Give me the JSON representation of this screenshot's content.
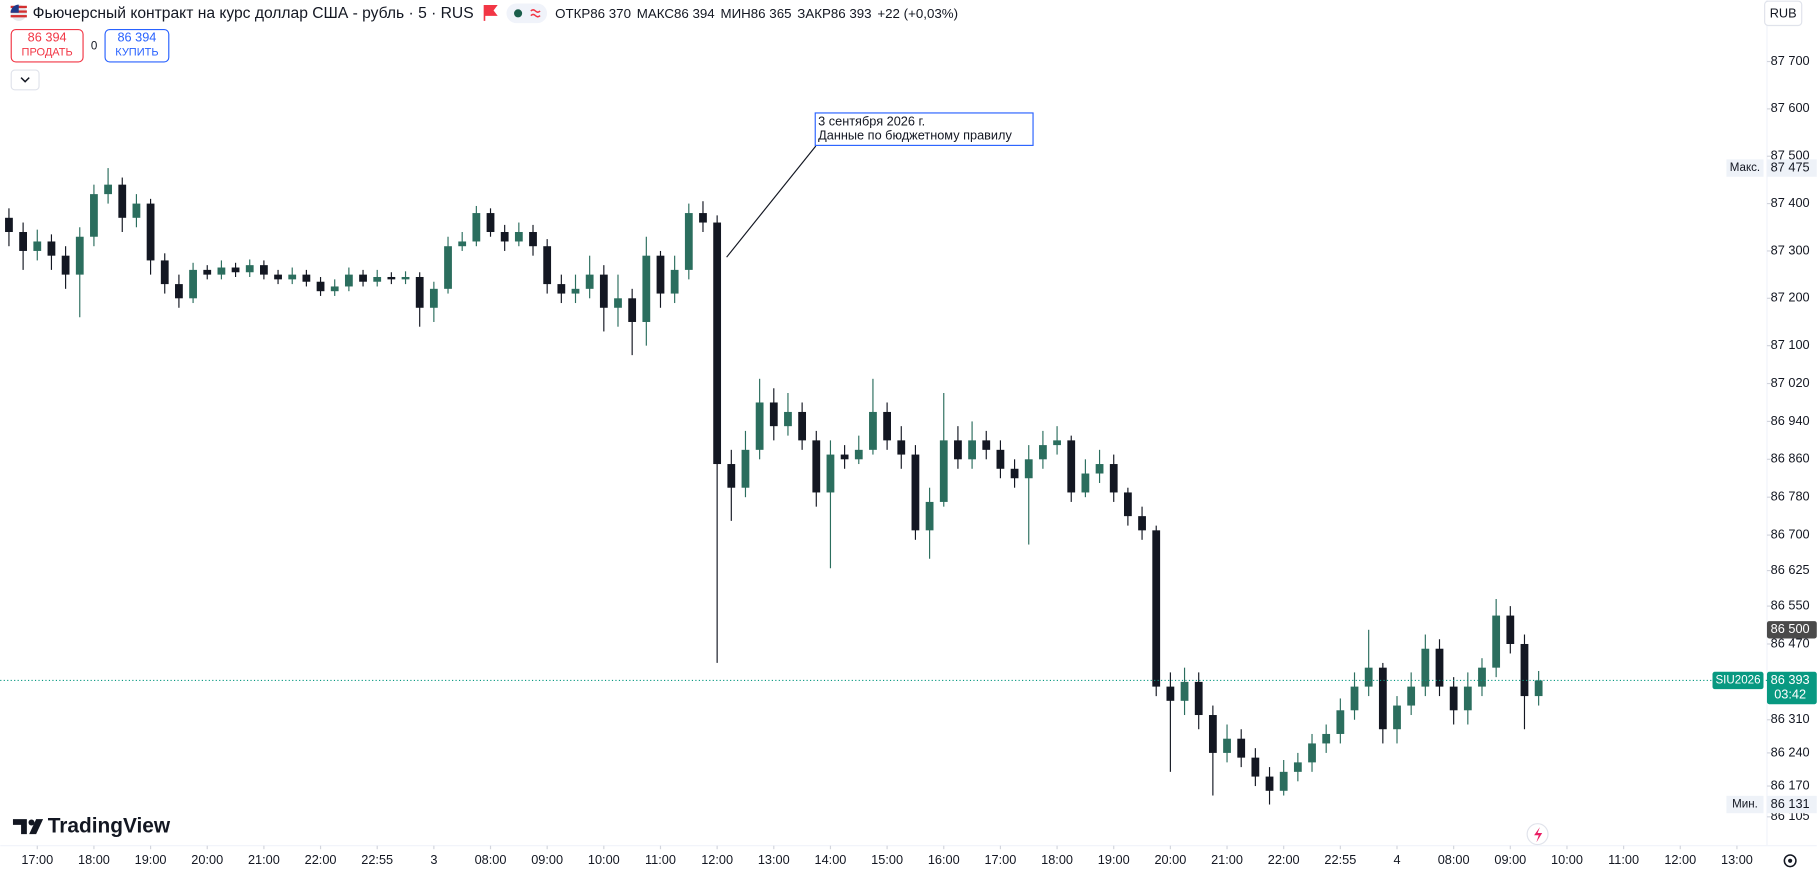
{
  "header": {
    "title": "Фьючерсный контракт на курс доллар США - рубль · 5 · RUS",
    "open_label": "ОТКР",
    "open": "86 370",
    "high_label": "МАКС",
    "high": "86 394",
    "low_label": "МИН",
    "low": "86 365",
    "close_label": "ЗАКР",
    "close": "86 393",
    "change": "+22 (+0,03%)",
    "currency": "RUB"
  },
  "trade": {
    "sell_price": "86 394",
    "sell_label": "ПРОДАТЬ",
    "spread": "0",
    "buy_price": "86 394",
    "buy_label": "КУПИТЬ"
  },
  "annotation": {
    "date": "3 сентября 2026 г.",
    "text": "Данные по бюджетному правилу"
  },
  "logo": "TradingView",
  "chart_data": {
    "type": "candlestick",
    "up_color": "#2b6e5e",
    "down_color": "#131722",
    "grid": false,
    "xlim": [
      -0.654,
      30.53
    ],
    "ylim": [
      86044,
      87781
    ],
    "xticks": [
      {
        "value": 0,
        "label": "17:00"
      },
      {
        "value": 1,
        "label": "18:00"
      },
      {
        "value": 2,
        "label": "19:00"
      },
      {
        "value": 3,
        "label": "20:00"
      },
      {
        "value": 4,
        "label": "21:00"
      },
      {
        "value": 5,
        "label": "22:00"
      },
      {
        "value": 6,
        "label": "22:55"
      },
      {
        "value": 7,
        "label": "3"
      },
      {
        "value": 8,
        "label": "08:00"
      },
      {
        "value": 9,
        "label": "09:00"
      },
      {
        "value": 10,
        "label": "10:00"
      },
      {
        "value": 11,
        "label": "11:00"
      },
      {
        "value": 12,
        "label": "12:00"
      },
      {
        "value": 13,
        "label": "13:00"
      },
      {
        "value": 14,
        "label": "14:00"
      },
      {
        "value": 15,
        "label": "15:00"
      },
      {
        "value": 16,
        "label": "16:00"
      },
      {
        "value": 17,
        "label": "17:00"
      },
      {
        "value": 18,
        "label": "18:00"
      },
      {
        "value": 19,
        "label": "19:00"
      },
      {
        "value": 20,
        "label": "20:00"
      },
      {
        "value": 21,
        "label": "21:00"
      },
      {
        "value": 22,
        "label": "22:00"
      },
      {
        "value": 23,
        "label": "22:55"
      },
      {
        "value": 24,
        "label": "4"
      },
      {
        "value": 25,
        "label": "08:00"
      },
      {
        "value": 26,
        "label": "09:00"
      },
      {
        "value": 27,
        "label": "10:00"
      },
      {
        "value": 28,
        "label": "11:00"
      },
      {
        "value": 29,
        "label": "12:00"
      },
      {
        "value": 30,
        "label": "13:00"
      }
    ],
    "yticks": [
      {
        "value": 87700,
        "label": "87 700"
      },
      {
        "value": 87600,
        "label": "87 600"
      },
      {
        "value": 87500,
        "label": "87 500"
      },
      {
        "value": 87400,
        "label": "87 400"
      },
      {
        "value": 87300,
        "label": "87 300"
      },
      {
        "value": 87200,
        "label": "87 200"
      },
      {
        "value": 87100,
        "label": "87 100"
      },
      {
        "value": 87020,
        "label": "87 020"
      },
      {
        "value": 86940,
        "label": "86 940"
      },
      {
        "value": 86860,
        "label": "86 860"
      },
      {
        "value": 86780,
        "label": "86 780"
      },
      {
        "value": 86700,
        "label": "86 700"
      },
      {
        "value": 86625,
        "label": "86 625"
      },
      {
        "value": 86550,
        "label": "86 550"
      },
      {
        "value": 86470,
        "label": "86 470"
      },
      {
        "value": 86310,
        "label": "86 310"
      },
      {
        "value": 86240,
        "label": "86 240"
      },
      {
        "value": 86170,
        "label": "86 170"
      },
      {
        "value": 86105,
        "label": "86 105"
      }
    ],
    "x": [
      -0.5,
      -0.25,
      0,
      0.25,
      0.5,
      0.75,
      1,
      1.25,
      1.5,
      1.75,
      2,
      2.25,
      2.5,
      2.75,
      3,
      3.25,
      3.5,
      3.75,
      4,
      4.25,
      4.5,
      4.75,
      5,
      5.25,
      5.5,
      5.75,
      6,
      6.25,
      6.5,
      6.75,
      7,
      7.25,
      7.5,
      7.75,
      8,
      8.25,
      8.5,
      8.75,
      9,
      9.25,
      9.5,
      9.75,
      10,
      10.25,
      10.5,
      10.75,
      11,
      11.25,
      11.5,
      11.75,
      12,
      12.25,
      12.5,
      12.75,
      13,
      13.25,
      13.5,
      13.75,
      14,
      14.25,
      14.5,
      14.75,
      15,
      15.25,
      15.5,
      15.75,
      16,
      16.25,
      16.5,
      16.75,
      17,
      17.25,
      17.5,
      17.75,
      18,
      18.25,
      18.5,
      18.75,
      19,
      19.25,
      19.5,
      19.75,
      20,
      20.25,
      20.5,
      20.75,
      21,
      21.25,
      21.5,
      21.75,
      22,
      22.25,
      22.5,
      22.75,
      23,
      23.25,
      23.5,
      23.75,
      24,
      24.25,
      24.5,
      24.75,
      25,
      25.25,
      25.5,
      25.75,
      26,
      26.25,
      26.5
    ],
    "open": [
      87370,
      87340,
      87300,
      87320,
      87290,
      87250,
      87330,
      87420,
      87440,
      87370,
      87400,
      87280,
      87230,
      87200,
      87260,
      87250,
      87265,
      87255,
      87270,
      87250,
      87240,
      87250,
      87235,
      87215,
      87225,
      87250,
      87235,
      87245,
      87240,
      87245,
      87180,
      87220,
      87310,
      87320,
      87380,
      87340,
      87320,
      87340,
      87310,
      87230,
      87210,
      87220,
      87250,
      87180,
      87200,
      87150,
      87290,
      87210,
      87260,
      87380,
      87360,
      86850,
      86800,
      86880,
      86980,
      86930,
      86960,
      86900,
      86790,
      86870,
      86860,
      86880,
      86960,
      86900,
      86870,
      86710,
      86770,
      86900,
      86860,
      86900,
      86880,
      86840,
      86820,
      86860,
      86890,
      86900,
      86790,
      86830,
      86850,
      86790,
      86740,
      86710,
      86380,
      86350,
      86390,
      86320,
      86240,
      86270,
      86230,
      86190,
      86160,
      86200,
      86220,
      86260,
      86280,
      86330,
      86380,
      86420,
      86290,
      86340,
      86380,
      86460,
      86380,
      86330,
      86380,
      86420,
      86530,
      86470,
      86360
    ],
    "high": [
      87390,
      87360,
      87345,
      87335,
      87310,
      87350,
      87440,
      87475,
      87455,
      87420,
      87410,
      87295,
      87250,
      87275,
      87270,
      87280,
      87275,
      87282,
      87280,
      87260,
      87265,
      87260,
      87245,
      87240,
      87265,
      87260,
      87260,
      87255,
      87257,
      87255,
      87235,
      87330,
      87340,
      87395,
      87390,
      87355,
      87360,
      87355,
      87325,
      87250,
      87250,
      87290,
      87270,
      87250,
      87220,
      87330,
      87300,
      87290,
      87400,
      87405,
      87375,
      86880,
      86920,
      87030,
      87010,
      87000,
      86980,
      86920,
      86900,
      86890,
      86910,
      87030,
      86980,
      86930,
      86890,
      86800,
      87000,
      86930,
      86940,
      86920,
      86900,
      86860,
      86890,
      86920,
      86930,
      86910,
      86860,
      86880,
      86870,
      86800,
      86760,
      86720,
      86410,
      86420,
      86410,
      86340,
      86300,
      86290,
      86250,
      86210,
      86225,
      86240,
      86280,
      86300,
      86355,
      86410,
      86500,
      86430,
      86360,
      86410,
      86490,
      86480,
      86400,
      86410,
      86440,
      86565,
      86550,
      86490,
      86413
    ],
    "low": [
      87310,
      87260,
      87280,
      87260,
      87220,
      87160,
      87310,
      87400,
      87340,
      87350,
      87250,
      87210,
      87180,
      87190,
      87240,
      87240,
      87245,
      87245,
      87240,
      87230,
      87230,
      87225,
      87205,
      87205,
      87215,
      87225,
      87225,
      87230,
      87230,
      87140,
      87150,
      87210,
      87300,
      87310,
      87330,
      87300,
      87310,
      87290,
      87210,
      87190,
      87190,
      87200,
      87130,
      87140,
      87080,
      87100,
      87180,
      87190,
      87240,
      87340,
      86430,
      86730,
      86780,
      86860,
      86900,
      86910,
      86880,
      86760,
      86630,
      86840,
      86850,
      86870,
      86880,
      86840,
      86690,
      86650,
      86760,
      86840,
      86840,
      86860,
      86820,
      86800,
      86680,
      86840,
      86870,
      86770,
      86780,
      86810,
      86770,
      86720,
      86690,
      86360,
      86200,
      86320,
      86290,
      86150,
      86220,
      86210,
      86170,
      86131,
      86150,
      86180,
      86200,
      86240,
      86260,
      86310,
      86360,
      86260,
      86260,
      86320,
      86360,
      86360,
      86300,
      86300,
      86360,
      86400,
      86450,
      86290,
      86340
    ],
    "close": [
      87340,
      87300,
      87320,
      87290,
      87250,
      87330,
      87420,
      87440,
      87370,
      87400,
      87280,
      87230,
      87200,
      87260,
      87250,
      87265,
      87255,
      87270,
      87250,
      87240,
      87250,
      87235,
      87215,
      87225,
      87250,
      87235,
      87245,
      87240,
      87245,
      87180,
      87220,
      87310,
      87320,
      87380,
      87340,
      87320,
      87340,
      87310,
      87230,
      87210,
      87220,
      87250,
      87180,
      87200,
      87150,
      87290,
      87210,
      87260,
      87380,
      87360,
      86850,
      86800,
      86880,
      86980,
      86930,
      86960,
      86900,
      86790,
      86870,
      86860,
      86880,
      86960,
      86900,
      86870,
      86710,
      86770,
      86900,
      86860,
      86900,
      86880,
      86840,
      86820,
      86860,
      86890,
      86900,
      86790,
      86830,
      86850,
      86790,
      86740,
      86710,
      86380,
      86350,
      86390,
      86320,
      86240,
      86270,
      86230,
      86190,
      86160,
      86200,
      86220,
      86260,
      86280,
      86330,
      86380,
      86420,
      86290,
      86340,
      86380,
      86460,
      86380,
      86330,
      86380,
      86420,
      86530,
      86470,
      86360,
      86393
    ],
    "max_marker": {
      "name": "Макс.",
      "value": 87475,
      "label": "87 475"
    },
    "min_marker": {
      "name": "Мин.",
      "value": 86131,
      "label": "86 131"
    },
    "crosshair": {
      "value": 86500,
      "label": "86 500"
    },
    "last": {
      "name": "SIU2026",
      "value": 86393,
      "label": "86 393",
      "countdown": "03:42",
      "color": "#089981"
    }
  }
}
